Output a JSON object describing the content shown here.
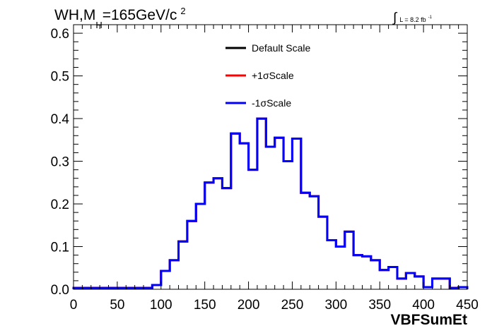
{
  "chart_data": {
    "type": "line",
    "title": {
      "main": "WH,M",
      "subscript": "H",
      "rest": "=165GeV/c",
      "superscript": "2"
    },
    "annotation": {
      "integral": "∫",
      "text": "L = 8.2 fb",
      "superscript": "-1"
    },
    "xlabel": "VBFSumEt",
    "ylabel": "",
    "xlim": [
      0,
      450
    ],
    "ylim": [
      0,
      0.62
    ],
    "x_ticks": [
      0,
      50,
      100,
      150,
      200,
      250,
      300,
      350,
      400,
      450
    ],
    "y_ticks": [
      "0.0",
      "0.1",
      "0.2",
      "0.3",
      "0.4",
      "0.5",
      "0.6"
    ],
    "bin_edges": [
      0,
      10,
      20,
      30,
      40,
      50,
      60,
      70,
      80,
      90,
      100,
      110,
      120,
      130,
      140,
      150,
      160,
      170,
      180,
      190,
      200,
      210,
      220,
      230,
      240,
      250,
      260,
      270,
      280,
      290,
      300,
      310,
      320,
      330,
      340,
      350,
      360,
      370,
      380,
      390,
      400,
      410,
      420,
      430,
      440,
      450
    ],
    "series": [
      {
        "name": "Default Scale",
        "color": "#000000",
        "values": [
          0.003,
          0.003,
          0.003,
          0.003,
          0.003,
          0.003,
          0.003,
          0.003,
          0.003,
          0.01,
          0.043,
          0.068,
          0.112,
          0.16,
          0.2,
          0.25,
          0.26,
          0.237,
          0.365,
          0.342,
          0.28,
          0.4,
          0.334,
          0.355,
          0.3,
          0.353,
          0.226,
          0.218,
          0.17,
          0.115,
          0.1,
          0.135,
          0.08,
          0.077,
          0.068,
          0.045,
          0.052,
          0.025,
          0.038,
          0.03,
          0.005,
          0.025,
          0.025,
          0.003,
          0.005
        ]
      },
      {
        "name": "+1σScale",
        "color": "#ff0000",
        "values": [
          0.003,
          0.003,
          0.003,
          0.003,
          0.003,
          0.003,
          0.003,
          0.003,
          0.003,
          0.01,
          0.043,
          0.068,
          0.112,
          0.16,
          0.2,
          0.25,
          0.26,
          0.237,
          0.365,
          0.342,
          0.28,
          0.4,
          0.334,
          0.355,
          0.3,
          0.353,
          0.226,
          0.218,
          0.17,
          0.115,
          0.1,
          0.135,
          0.08,
          0.077,
          0.068,
          0.045,
          0.052,
          0.025,
          0.038,
          0.03,
          0.005,
          0.025,
          0.025,
          0.003,
          0.005
        ]
      },
      {
        "name": "-1σScale",
        "color": "#0000ff",
        "values": [
          0.003,
          0.003,
          0.003,
          0.003,
          0.003,
          0.003,
          0.003,
          0.003,
          0.003,
          0.01,
          0.043,
          0.068,
          0.112,
          0.16,
          0.2,
          0.25,
          0.26,
          0.237,
          0.365,
          0.342,
          0.28,
          0.4,
          0.334,
          0.355,
          0.3,
          0.353,
          0.226,
          0.218,
          0.17,
          0.115,
          0.1,
          0.135,
          0.08,
          0.077,
          0.068,
          0.045,
          0.052,
          0.025,
          0.038,
          0.03,
          0.005,
          0.025,
          0.025,
          0.003,
          0.005
        ]
      }
    ],
    "legend_placement": "top-center",
    "grid": false
  }
}
